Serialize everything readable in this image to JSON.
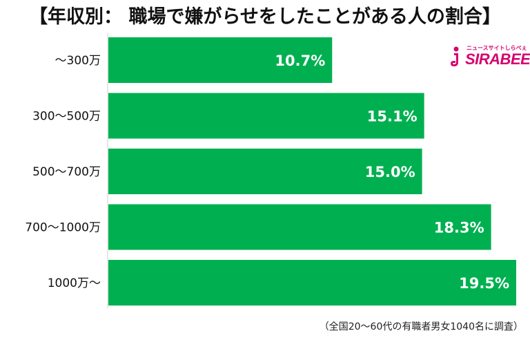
{
  "title": "【年収別： 職場で嫌がらせをしたことがある人の割合】",
  "note": "（全国20〜60代の有職者男女1040名に調査）",
  "logo": {
    "tagline": "ニュースサイトしらべぇ",
    "brand": "SIRABEE",
    "icon": "sirabee-logo-icon",
    "color": "#d6006f"
  },
  "colors": {
    "bar": "#00b050",
    "value_text": "#ffffff"
  },
  "chart_data": {
    "type": "bar",
    "orientation": "horizontal",
    "title": "【年収別： 職場で嫌がらせをしたことがある人の割合】",
    "categories": [
      "〜300万",
      "300〜500万",
      "500〜700万",
      "700〜1000万",
      "1000万〜"
    ],
    "values": [
      10.7,
      15.1,
      15.0,
      18.3,
      19.5
    ],
    "value_labels": [
      "10.7%",
      "15.1%",
      "15.0%",
      "18.3%",
      "19.5%"
    ],
    "xlim": [
      0,
      19.5
    ],
    "grid": false,
    "legend": "none"
  }
}
